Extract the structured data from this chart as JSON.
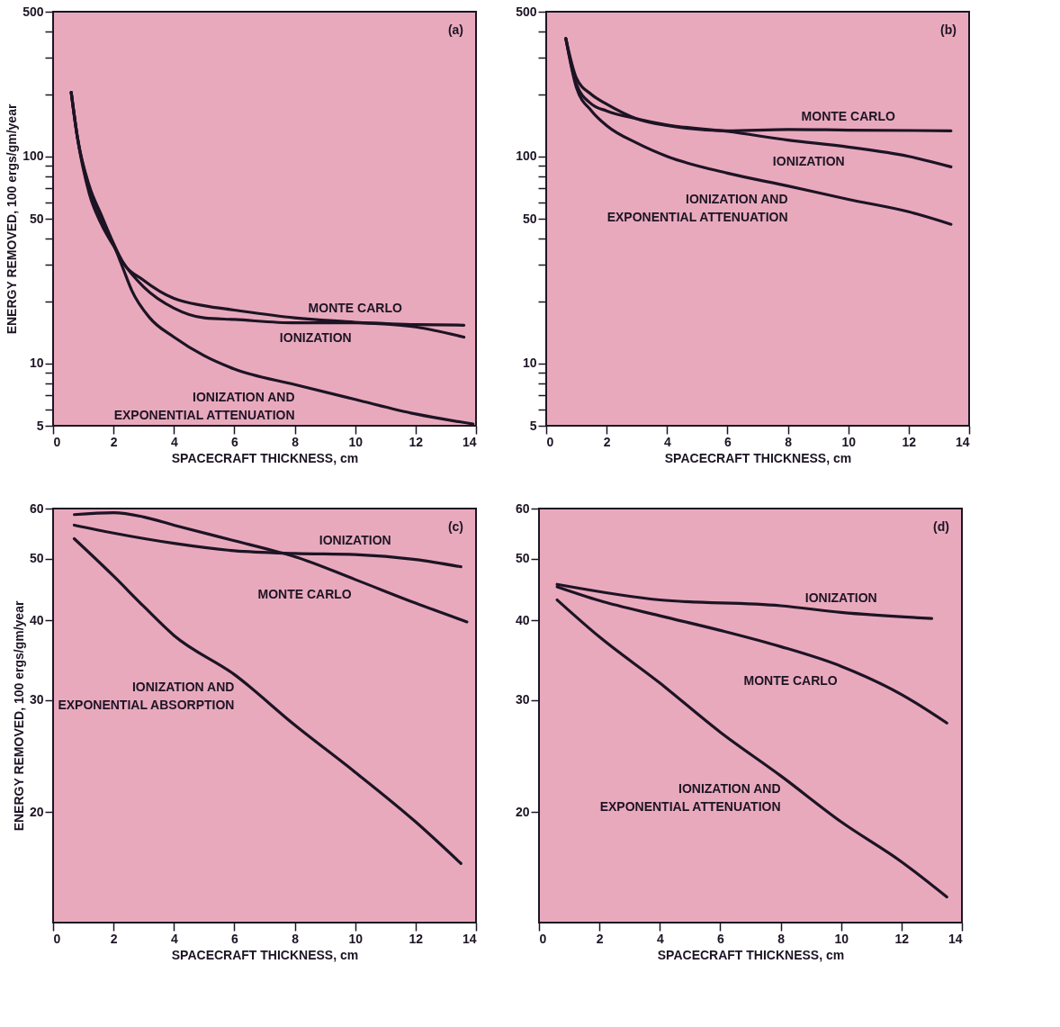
{
  "chart_data": [
    {
      "type": "line",
      "xlabel": "SPACECRAFT THICKNESS, cm",
      "ylabel": "ENERGY REMOVED, 100 ergs/gm/year",
      "log": true,
      "grid": false,
      "line_style": "solid",
      "marker": "none",
      "xlim": [
        0,
        14
      ],
      "xticks": [
        0,
        2,
        4,
        6,
        8,
        10,
        12,
        14
      ],
      "ylim": [
        5,
        500
      ],
      "yticks": [
        5,
        {
          "value": 6,
          "label": null
        },
        {
          "value": 7,
          "label": null
        },
        {
          "value": 8,
          "label": null
        },
        {
          "value": 9,
          "label": null
        },
        10,
        {
          "value": 20,
          "label": null
        },
        {
          "value": 30,
          "label": null
        },
        {
          "value": 40,
          "label": null
        },
        50,
        {
          "value": 60,
          "label": null
        },
        {
          "value": 70,
          "label": null
        },
        {
          "value": 80,
          "label": null
        },
        {
          "value": 90,
          "label": null
        },
        100,
        {
          "value": 200,
          "label": null
        },
        {
          "value": 300,
          "label": null
        },
        {
          "value": 400,
          "label": null
        },
        500
      ],
      "series": [
        {
          "name": "MONTE CARLO",
          "color": "#1c1424",
          "x": [
            0.6,
            0.8,
            1.2,
            1.6,
            2.0,
            2.3,
            3,
            4,
            5,
            6,
            8,
            10,
            12,
            13.6
          ],
          "values": [
            204,
            125,
            72,
            52,
            38,
            31,
            25.2,
            20.6,
            19.0,
            18.1,
            16.6,
            15.8,
            15.0,
            13.4
          ]
        },
        {
          "name": "IONIZATION",
          "color": "#1c1424",
          "x": [
            0.6,
            0.8,
            1.2,
            1.6,
            2.0,
            2.3,
            3,
            4,
            5,
            6,
            8,
            10,
            12,
            13.6
          ],
          "values": [
            204,
            125,
            66,
            47,
            37,
            31,
            23.4,
            18.5,
            16.6,
            16.3,
            15.7,
            15.7,
            15.4,
            15.3
          ]
        },
        {
          "name": "IONIZATION AND\nEXPONENTIAL ATTENUATION",
          "color": "#1c1424",
          "x": [
            0.6,
            0.8,
            1.2,
            1.6,
            2.0,
            2.3,
            2.6,
            3.2,
            4,
            5,
            6,
            8,
            10,
            12,
            13.9
          ],
          "values": [
            204,
            125,
            70,
            50,
            37.6,
            29.2,
            22.6,
            16.6,
            13.4,
            10.9,
            9.4,
            7.9,
            6.7,
            5.7,
            5.1
          ]
        }
      ],
      "annotations": [
        "(a)"
      ]
    },
    {
      "type": "line",
      "xlabel": "SPACECRAFT THICKNESS, cm",
      "log": true,
      "grid": false,
      "line_style": "solid",
      "marker": "none",
      "xlim": [
        0,
        14
      ],
      "xticks": [
        0,
        2,
        4,
        6,
        8,
        10,
        12,
        14
      ],
      "ylim": [
        5,
        500
      ],
      "yticks": [
        5,
        {
          "value": 6,
          "label": null
        },
        {
          "value": 7,
          "label": null
        },
        {
          "value": 8,
          "label": null
        },
        {
          "value": 9,
          "label": null
        },
        10,
        {
          "value": 20,
          "label": null
        },
        {
          "value": 30,
          "label": null
        },
        {
          "value": 40,
          "label": null
        },
        50,
        {
          "value": 60,
          "label": null
        },
        {
          "value": 70,
          "label": null
        },
        {
          "value": 80,
          "label": null
        },
        {
          "value": 90,
          "label": null
        },
        100,
        {
          "value": 200,
          "label": null
        },
        {
          "value": 300,
          "label": null
        },
        {
          "value": 400,
          "label": null
        },
        500
      ],
      "series": [
        {
          "name": "MONTE CARLO",
          "color": "#1c1424",
          "x": [
            0.65,
            1,
            1.5,
            2,
            3,
            4,
            6,
            8,
            10,
            13.4
          ],
          "values": [
            371,
            239,
            199,
            179,
            152,
            141,
            133,
            135,
            134,
            133
          ]
        },
        {
          "name": "IONIZATION",
          "color": "#1c1424",
          "x": [
            0.65,
            1,
            1.5,
            2,
            3,
            4,
            6,
            8,
            10,
            12,
            13.4
          ],
          "values": [
            371,
            223,
            179,
            166,
            152,
            142,
            132,
            120,
            111,
            100,
            89
          ]
        },
        {
          "name": "IONIZATION AND\nEXPONENTIAL ATTENUATION",
          "color": "#1c1424",
          "x": [
            0.65,
            1,
            1.5,
            2,
            3,
            4,
            6,
            8,
            10,
            12,
            13.4
          ],
          "values": [
            371,
            215,
            166,
            141,
            116,
            100,
            83,
            72,
            62,
            54,
            47
          ]
        }
      ],
      "annotations": [
        "(b)"
      ]
    },
    {
      "type": "line",
      "xlabel": "SPACECRAFT THICKNESS, cm",
      "ylabel": "ENERGY REMOVED, 100 ergs/gm/year",
      "log": true,
      "grid": false,
      "line_style": "solid",
      "marker": "none",
      "xlim": [
        0,
        14
      ],
      "xticks": [
        0,
        2,
        4,
        6,
        8,
        10,
        12,
        14
      ],
      "ylim": [
        13.4,
        60
      ],
      "yticks": [
        20,
        30,
        40,
        50,
        60
      ],
      "series": [
        {
          "name": "MONTE CARLO",
          "color": "#1c1424",
          "x": [
            0.7,
            2,
            3,
            4,
            6,
            7.5,
            8,
            10,
            12,
            13.7
          ],
          "values": [
            58.7,
            59.1,
            58.2,
            56.5,
            53.4,
            51.2,
            50.4,
            46.4,
            42.6,
            39.8
          ]
        },
        {
          "name": "IONIZATION",
          "color": "#1c1424",
          "x": [
            0.7,
            2,
            4,
            6,
            8,
            10,
            12,
            13.5
          ],
          "values": [
            56.5,
            54.9,
            52.9,
            51.5,
            51.0,
            50.8,
            49.9,
            48.6
          ]
        },
        {
          "name": "IONIZATION AND\nEXPONENTIAL ABSORPTION",
          "color": "#1c1424",
          "x": [
            0.7,
            2,
            3,
            4,
            6,
            8,
            10,
            12,
            13.5
          ],
          "values": [
            53.8,
            47.0,
            42.1,
            37.9,
            32.9,
            27.4,
            23.1,
            19.3,
            16.6
          ]
        }
      ],
      "annotations": [
        "(c)"
      ]
    },
    {
      "type": "line",
      "xlabel": "SPACECRAFT THICKNESS, cm",
      "log": true,
      "grid": false,
      "line_style": "solid",
      "marker": "none",
      "xlim": [
        0,
        14
      ],
      "xticks": [
        0,
        2,
        4,
        6,
        8,
        10,
        12,
        14
      ],
      "ylim": [
        13.4,
        60
      ],
      "yticks": [
        20,
        30,
        40,
        50,
        60
      ],
      "series": [
        {
          "name": "IONIZATION",
          "color": "#1c1424",
          "x": [
            0.6,
            4,
            8,
            10,
            13
          ],
          "values": [
            45.6,
            43.1,
            42.2,
            41.2,
            40.3
          ]
        },
        {
          "name": "MONTE CARLO",
          "color": "#1c1424",
          "x": [
            0.6,
            2,
            4,
            6,
            8,
            10,
            12,
            13.5
          ],
          "values": [
            45.2,
            43.0,
            40.7,
            38.6,
            36.4,
            33.9,
            30.6,
            27.6
          ]
        },
        {
          "name": "IONIZATION AND\nEXPONENTIAL ATTENUATION",
          "color": "#1c1424",
          "x": [
            0.6,
            2,
            4,
            6,
            8,
            10,
            12,
            13.5
          ],
          "values": [
            43.1,
            37.7,
            31.9,
            26.7,
            22.8,
            19.3,
            16.7,
            14.7
          ]
        }
      ],
      "annotations": [
        "(d)"
      ]
    }
  ]
}
